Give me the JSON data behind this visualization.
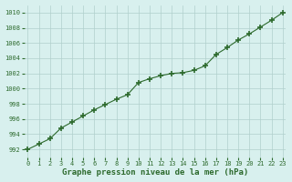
{
  "x": [
    0,
    1,
    2,
    3,
    4,
    5,
    6,
    7,
    8,
    9,
    10,
    11,
    12,
    13,
    14,
    15,
    16,
    17,
    18,
    19,
    20,
    21,
    22,
    23
  ],
  "y": [
    992.0,
    992.7,
    993.4,
    994.8,
    995.6,
    996.4,
    997.2,
    997.9,
    998.6,
    999.2,
    1000.8,
    1001.3,
    1001.7,
    1002.0,
    1002.1,
    1002.4,
    1003.0,
    1004.5,
    1005.4,
    1006.4,
    1007.2,
    1008.1,
    1009.0,
    1010.0
  ],
  "line_color": "#2d6a2d",
  "marker": "+",
  "markersize": 4,
  "markeredgewidth": 1.2,
  "linewidth": 0.8,
  "linestyle": "-",
  "bg_color": "#d8f0ee",
  "grid_color": "#b0d0cc",
  "xlabel": "Graphe pression niveau de la mer (hPa)",
  "xlabel_fontsize": 6.5,
  "xlabel_color": "#2d6a2d",
  "tick_color": "#2d6a2d",
  "tick_fontsize": 5.0,
  "ylim": [
    991,
    1011
  ],
  "xlim": [
    -0.3,
    23.3
  ],
  "yticks": [
    992,
    994,
    996,
    998,
    1000,
    1002,
    1004,
    1006,
    1008,
    1010
  ],
  "xticks": [
    0,
    1,
    2,
    3,
    4,
    5,
    6,
    7,
    8,
    9,
    10,
    11,
    12,
    13,
    14,
    15,
    16,
    17,
    18,
    19,
    20,
    21,
    22,
    23
  ]
}
